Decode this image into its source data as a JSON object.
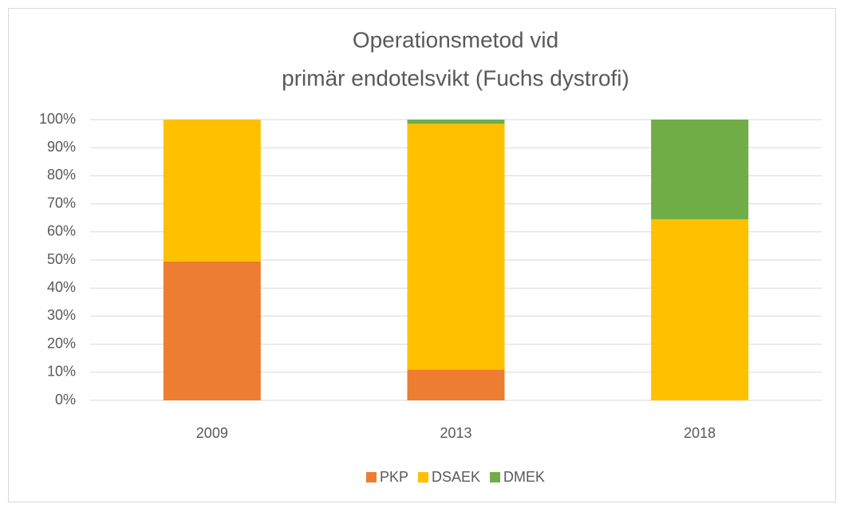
{
  "chart_data": {
    "type": "stacked_bar",
    "title": [
      "Operationsmetod vid",
      "primär endotelsvikt  (Fuchs dystrofi)"
    ],
    "categories": [
      "2009",
      "2013",
      "2018"
    ],
    "series": [
      {
        "name": "PKP",
        "color": "#ed7d31",
        "values": [
          49.5,
          11,
          0
        ]
      },
      {
        "name": "DSAEK",
        "color": "#ffc000",
        "values": [
          50.5,
          87.5,
          64.5
        ]
      },
      {
        "name": "DMEK",
        "color": "#70ad47",
        "values": [
          0,
          1.5,
          35.5
        ]
      }
    ],
    "ylim": [
      0,
      100
    ],
    "yticks": [
      {
        "value": 0,
        "label": "0%"
      },
      {
        "value": 10,
        "label": "10%"
      },
      {
        "value": 20,
        "label": "20%"
      },
      {
        "value": 30,
        "label": "30%"
      },
      {
        "value": 40,
        "label": "40%"
      },
      {
        "value": 50,
        "label": "50%"
      },
      {
        "value": 60,
        "label": "60%"
      },
      {
        "value": 70,
        "label": "70%"
      },
      {
        "value": 80,
        "label": "80%"
      },
      {
        "value": 90,
        "label": "90%"
      },
      {
        "value": 100,
        "label": "100%"
      }
    ],
    "grid": true,
    "legend": "bottom"
  }
}
